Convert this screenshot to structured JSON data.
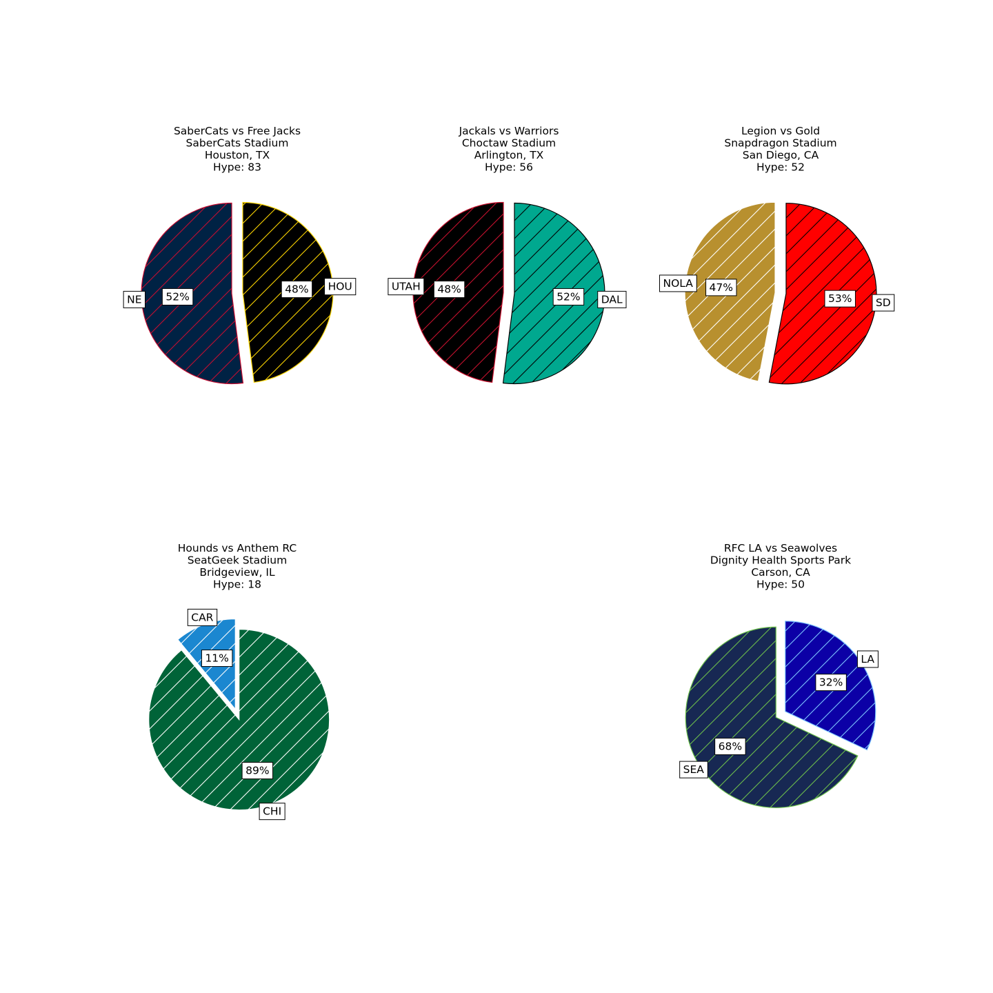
{
  "chart_data": [
    {
      "type": "pie",
      "title_lines": [
        "SaberCats vs Free Jacks",
        "SaberCats Stadium",
        "Houston, TX",
        "Hype: 83"
      ],
      "slices": [
        {
          "label": "NE",
          "pct_label": "52%",
          "value": 52,
          "color": "#002244",
          "edge": "#c60c30",
          "hatch": "#c60c30"
        },
        {
          "label": "HOU",
          "pct_label": "48%",
          "value": 48,
          "color": "#000000",
          "edge": "#ffd700",
          "hatch": "#ffd700"
        }
      ]
    },
    {
      "type": "pie",
      "title_lines": [
        "Jackals vs Warriors",
        "Choctaw Stadium",
        "Arlington, TX",
        "Hype: 56"
      ],
      "slices": [
        {
          "label": "UTAH",
          "pct_label": "48%",
          "value": 48,
          "color": "#000000",
          "edge": "#c8102e",
          "hatch": "#c8102e"
        },
        {
          "label": "DAL",
          "pct_label": "52%",
          "value": 52,
          "color": "#00a88f",
          "edge": "#000000",
          "hatch": "#000000"
        }
      ]
    },
    {
      "type": "pie",
      "title_lines": [
        "Legion vs Gold",
        "Snapdragon Stadium",
        "San Diego, CA",
        "Hype: 52"
      ],
      "slices": [
        {
          "label": "NOLA",
          "pct_label": "47%",
          "value": 47,
          "color": "#b8902f",
          "edge": "#ffffff",
          "hatch": "#ffffff"
        },
        {
          "label": "SD",
          "pct_label": "53%",
          "value": 53,
          "color": "#ff0000",
          "edge": "#000000",
          "hatch": "#000000"
        }
      ]
    },
    {
      "type": "pie",
      "title_lines": [
        "Hounds vs Anthem RC",
        "SeatGeek Stadium",
        "Bridgeview, IL",
        "Hype: 18"
      ],
      "slices": [
        {
          "label": "CAR",
          "pct_label": "11%",
          "value": 11,
          "color": "#1b87d0",
          "edge": "#ffffff",
          "hatch": "#ffffff"
        },
        {
          "label": "CHI",
          "pct_label": "89%",
          "value": 89,
          "color": "#006338",
          "edge": "#ffffff",
          "hatch": "#ffffff"
        }
      ]
    },
    {
      "type": "pie",
      "title_lines": [
        "RFC LA vs Seawolves",
        "Dignity Health Sports Park",
        "Carson, CA",
        "Hype: 50"
      ],
      "slices": [
        {
          "label": "SEA",
          "pct_label": "68%",
          "value": 68,
          "color": "#172853",
          "edge": "#6cbf4b",
          "hatch": "#6cbf4b"
        },
        {
          "label": "LA",
          "pct_label": "32%",
          "value": 32,
          "color": "#0c00a6",
          "edge": "#7fc7ff",
          "hatch": "#7fc7ff"
        }
      ]
    }
  ]
}
